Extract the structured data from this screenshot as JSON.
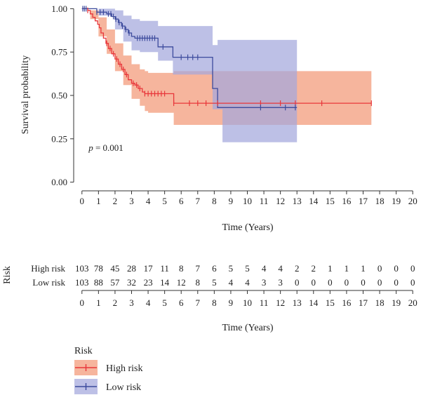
{
  "chart_data": {
    "type": "line",
    "plot": {
      "xlabel": "Time (Years)",
      "ylabel": "Survival probability",
      "xlim": [
        -0.5,
        20.5
      ],
      "ylim": [
        -0.05,
        1.05
      ],
      "xticks": [
        0,
        1,
        2,
        3,
        4,
        5,
        6,
        7,
        8,
        9,
        10,
        11,
        12,
        13,
        14,
        15,
        16,
        17,
        18,
        19,
        20
      ],
      "yticks": [
        0.0,
        0.25,
        0.5,
        0.75,
        1.0
      ],
      "ytick_labels": [
        "0.00",
        "0.25",
        "0.50",
        "0.75",
        "1.00"
      ],
      "annotation": {
        "prefix": "p",
        "text": " = 0.001",
        "x": 0.4,
        "y": 0.18
      },
      "grid": false,
      "series": [
        {
          "name": "High risk",
          "color": "#e8363a",
          "ci_color": "#f4a88c",
          "steps": [
            [
              0,
              1.0
            ],
            [
              0.35,
              0.99
            ],
            [
              0.5,
              0.97
            ],
            [
              0.65,
              0.95
            ],
            [
              0.8,
              0.93
            ],
            [
              0.95,
              0.91
            ],
            [
              1.05,
              0.89
            ],
            [
              1.15,
              0.86
            ],
            [
              1.3,
              0.83
            ],
            [
              1.45,
              0.8
            ],
            [
              1.6,
              0.77
            ],
            [
              1.8,
              0.74
            ],
            [
              2.0,
              0.71
            ],
            [
              2.2,
              0.68
            ],
            [
              2.4,
              0.65
            ],
            [
              2.6,
              0.62
            ],
            [
              2.8,
              0.59
            ],
            [
              3.0,
              0.57
            ],
            [
              3.2,
              0.56
            ],
            [
              3.4,
              0.54
            ],
            [
              3.65,
              0.52
            ],
            [
              3.8,
              0.51
            ],
            [
              4.0,
              0.51
            ],
            [
              5.55,
              0.455
            ],
            [
              17.5,
              0.455
            ]
          ],
          "ci_lower": [
            [
              0,
              1.0
            ],
            [
              0.5,
              0.94
            ],
            [
              1.0,
              0.84
            ],
            [
              1.5,
              0.74
            ],
            [
              2.0,
              0.64
            ],
            [
              2.5,
              0.56
            ],
            [
              3.0,
              0.48
            ],
            [
              3.5,
              0.44
            ],
            [
              3.8,
              0.41
            ],
            [
              4.0,
              0.4
            ],
            [
              5.55,
              0.33
            ],
            [
              17.5,
              0.33
            ]
          ],
          "ci_upper": [
            [
              0,
              1.0
            ],
            [
              0.5,
              0.99
            ],
            [
              1.0,
              0.95
            ],
            [
              1.5,
              0.88
            ],
            [
              2.0,
              0.8
            ],
            [
              2.5,
              0.73
            ],
            [
              3.0,
              0.68
            ],
            [
              3.5,
              0.65
            ],
            [
              3.8,
              0.64
            ],
            [
              4.0,
              0.63
            ],
            [
              5.55,
              0.64
            ],
            [
              17.5,
              0.64
            ]
          ],
          "censor": [
            0.35,
            1.5,
            1.7,
            1.9,
            2.1,
            2.3,
            2.5,
            2.7,
            3.1,
            3.3,
            3.5,
            3.8,
            4.0,
            4.2,
            4.4,
            4.6,
            4.8,
            5.0,
            5.55,
            6.5,
            7.0,
            7.5,
            8.2,
            10.8,
            12.0,
            12.9,
            14.5,
            17.5
          ]
        },
        {
          "name": "Low risk",
          "color": "#3c4a9c",
          "ci_color": "#a3a7dc",
          "steps": [
            [
              0,
              1.0
            ],
            [
              0.9,
              0.98
            ],
            [
              1.5,
              0.97
            ],
            [
              1.8,
              0.955
            ],
            [
              2.0,
              0.94
            ],
            [
              2.2,
              0.92
            ],
            [
              2.4,
              0.9
            ],
            [
              2.6,
              0.88
            ],
            [
              2.8,
              0.86
            ],
            [
              3.0,
              0.84
            ],
            [
              3.2,
              0.83
            ],
            [
              4.6,
              0.78
            ],
            [
              5.5,
              0.72
            ],
            [
              7.9,
              0.54
            ],
            [
              8.2,
              0.43
            ],
            [
              13.0,
              0.43
            ]
          ],
          "ci_lower": [
            [
              0,
              1.0
            ],
            [
              1.0,
              0.96
            ],
            [
              2.0,
              0.88
            ],
            [
              2.5,
              0.81
            ],
            [
              3.0,
              0.76
            ],
            [
              3.5,
              0.75
            ],
            [
              4.6,
              0.7
            ],
            [
              5.5,
              0.62
            ],
            [
              7.9,
              0.42
            ],
            [
              8.5,
              0.23
            ],
            [
              13.0,
              0.23
            ]
          ],
          "ci_upper": [
            [
              0,
              1.0
            ],
            [
              1.0,
              1.0
            ],
            [
              2.0,
              0.99
            ],
            [
              2.5,
              0.96
            ],
            [
              3.0,
              0.94
            ],
            [
              3.5,
              0.93
            ],
            [
              4.6,
              0.9
            ],
            [
              5.5,
              0.9
            ],
            [
              7.9,
              0.79
            ],
            [
              8.2,
              0.82
            ],
            [
              13.0,
              0.82
            ]
          ],
          "censor": [
            0.05,
            0.15,
            0.25,
            0.9,
            1.1,
            1.3,
            1.6,
            1.75,
            1.9,
            2.05,
            2.25,
            2.45,
            2.65,
            2.85,
            3.35,
            3.5,
            3.65,
            3.8,
            3.95,
            4.1,
            4.25,
            4.4,
            4.9,
            6.0,
            6.4,
            6.7,
            7.0,
            10.8,
            12.3,
            12.9
          ]
        }
      ]
    },
    "risk_table": {
      "ylabel": "Risk",
      "xlabel": "Time (Years)",
      "times": [
        0,
        1,
        2,
        3,
        4,
        5,
        6,
        7,
        8,
        9,
        10,
        11,
        12,
        13,
        14,
        15,
        16,
        17,
        18,
        19,
        20
      ],
      "rows": [
        {
          "label": "High risk",
          "values": [
            103,
            78,
            45,
            28,
            17,
            11,
            8,
            7,
            6,
            5,
            5,
            4,
            4,
            2,
            2,
            1,
            1,
            1,
            0,
            0,
            0
          ]
        },
        {
          "label": "Low risk",
          "values": [
            103,
            88,
            57,
            32,
            23,
            14,
            12,
            8,
            5,
            4,
            4,
            3,
            3,
            0,
            0,
            0,
            0,
            0,
            0,
            0,
            0
          ]
        }
      ]
    },
    "legend": {
      "title": "Risk",
      "placement": "bottom-left",
      "items": [
        "High risk",
        "Low risk"
      ]
    }
  }
}
